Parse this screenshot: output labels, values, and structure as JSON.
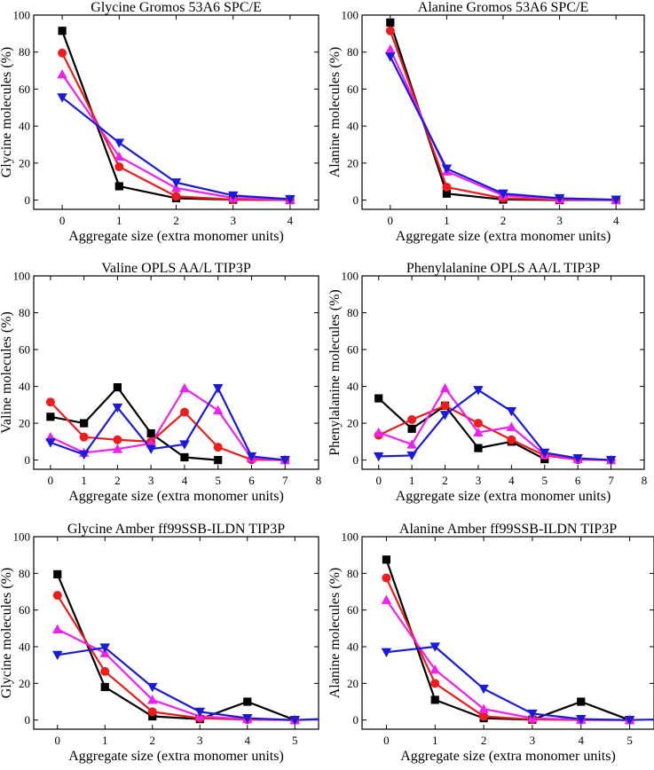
{
  "chart_data": [
    {
      "type": "line",
      "title": "Glycine Gromos 53A6 SPC/E",
      "xlabel": "Aggregate size (extra monomer units)",
      "ylabel": "Glycine molecules (%)",
      "xlim": [
        -0.5,
        4.5
      ],
      "ylim": [
        -5,
        100
      ],
      "xticks": [
        0,
        1,
        2,
        3,
        4
      ],
      "yticks": [
        0,
        20,
        40,
        60,
        80,
        100
      ],
      "series": [
        {
          "name": "black",
          "color": "#000000",
          "marker": "square",
          "x": [
            0,
            1,
            2,
            3,
            4
          ],
          "y": [
            91.5,
            7.5,
            1.0,
            0.2,
            0.0
          ]
        },
        {
          "name": "red",
          "color": "#ee1c1c",
          "marker": "circle",
          "x": [
            0,
            1,
            2,
            3,
            4
          ],
          "y": [
            79.5,
            18.0,
            2.0,
            0.3,
            0.0
          ]
        },
        {
          "name": "magenta",
          "color": "#ee22ee",
          "marker": "triangle-up",
          "x": [
            0,
            1,
            2,
            3,
            4
          ],
          "y": [
            68.0,
            23.5,
            6.5,
            1.2,
            0.2
          ]
        },
        {
          "name": "blue",
          "color": "#1a1add",
          "marker": "triangle-down",
          "x": [
            0,
            1,
            2,
            3,
            4
          ],
          "y": [
            55.5,
            31.0,
            9.5,
            2.5,
            0.5
          ]
        }
      ]
    },
    {
      "type": "line",
      "title": "Alanine Gromos 53A6 SPC/E",
      "xlabel": "Aggregate size (extra monomer units)",
      "ylabel": "Alanine molecules (%)",
      "xlim": [
        -0.5,
        4.5
      ],
      "ylim": [
        -5,
        100
      ],
      "xticks": [
        0,
        1,
        2,
        3,
        4
      ],
      "yticks": [
        0,
        20,
        40,
        60,
        80,
        100
      ],
      "series": [
        {
          "name": "black",
          "color": "#000000",
          "marker": "square",
          "x": [
            0,
            1,
            2,
            3,
            4
          ],
          "y": [
            96.0,
            3.5,
            0.3,
            0.0,
            0.0
          ]
        },
        {
          "name": "red",
          "color": "#ee1c1c",
          "marker": "circle",
          "x": [
            0,
            1,
            2,
            3,
            4
          ],
          "y": [
            91.5,
            7.0,
            1.0,
            0.2,
            0.0
          ]
        },
        {
          "name": "magenta",
          "color": "#ee22ee",
          "marker": "triangle-up",
          "x": [
            0,
            1,
            2,
            3,
            4
          ],
          "y": [
            81.5,
            15.5,
            2.5,
            0.5,
            0.0
          ]
        },
        {
          "name": "blue",
          "color": "#1a1add",
          "marker": "triangle-down",
          "x": [
            0,
            1,
            2,
            3,
            4
          ],
          "y": [
            77.5,
            17.0,
            3.5,
            1.0,
            0.2
          ]
        }
      ]
    },
    {
      "type": "line",
      "title": "Valine OPLS AA/L TIP3P",
      "xlabel": "Aggregate size (extra monomer units)",
      "ylabel": "Valine molecules (%)",
      "xlim": [
        -0.5,
        8
      ],
      "ylim": [
        -5,
        100
      ],
      "xticks": [
        0,
        1,
        2,
        3,
        4,
        5,
        6,
        7,
        8
      ],
      "yticks": [
        0,
        20,
        40,
        60,
        80,
        100
      ],
      "series": [
        {
          "name": "black",
          "color": "#000000",
          "marker": "square",
          "x": [
            0,
            1,
            2,
            3,
            4,
            5
          ],
          "y": [
            23.5,
            20.0,
            39.5,
            14.5,
            1.5,
            0.0
          ]
        },
        {
          "name": "red",
          "color": "#ee1c1c",
          "marker": "circle",
          "x": [
            0,
            1,
            2,
            3,
            4,
            5,
            6,
            7
          ],
          "y": [
            31.5,
            12.5,
            11.0,
            10.0,
            26.0,
            7.0,
            0.2,
            0.0
          ]
        },
        {
          "name": "magenta",
          "color": "#ee22ee",
          "marker": "triangle-up",
          "x": [
            0,
            1,
            2,
            3,
            4,
            5,
            6,
            7
          ],
          "y": [
            12.5,
            4.0,
            6.0,
            9.0,
            39.0,
            27.0,
            1.0,
            0.0
          ]
        },
        {
          "name": "blue",
          "color": "#1a1add",
          "marker": "triangle-down",
          "x": [
            0,
            1,
            2,
            3,
            4,
            5,
            6,
            7
          ],
          "y": [
            9.5,
            3.0,
            28.5,
            6.0,
            8.5,
            39.0,
            2.0,
            0.0
          ]
        }
      ]
    },
    {
      "type": "line",
      "title": "Phenylalanine OPLS AA/L TIP3P",
      "xlabel": "Aggregate size (extra monomer units)",
      "ylabel": "Phenylalanine molecules (%)",
      "xlim": [
        -0.5,
        8
      ],
      "ylim": [
        -5,
        100
      ],
      "xticks": [
        0,
        1,
        2,
        3,
        4,
        5,
        6,
        7,
        8
      ],
      "yticks": [
        0,
        20,
        40,
        60,
        80,
        100
      ],
      "series": [
        {
          "name": "black",
          "color": "#000000",
          "marker": "square",
          "x": [
            0,
            1,
            2,
            3,
            4,
            5
          ],
          "y": [
            33.5,
            17.0,
            29.5,
            6.5,
            10.0,
            0.5
          ]
        },
        {
          "name": "red",
          "color": "#ee1c1c",
          "marker": "circle",
          "x": [
            0,
            1,
            2,
            3,
            4,
            5,
            6,
            7
          ],
          "y": [
            13.5,
            22.0,
            29.5,
            20.0,
            11.0,
            2.5,
            0.2,
            0.0
          ]
        },
        {
          "name": "magenta",
          "color": "#ee22ee",
          "marker": "triangle-up",
          "x": [
            0,
            1,
            2,
            3,
            4,
            5,
            6,
            7
          ],
          "y": [
            15.0,
            8.5,
            39.0,
            15.0,
            18.0,
            3.0,
            0.5,
            0.0
          ]
        },
        {
          "name": "blue",
          "color": "#1a1add",
          "marker": "triangle-down",
          "x": [
            0,
            1,
            2,
            3,
            4,
            5,
            6,
            7
          ],
          "y": [
            2.0,
            2.5,
            24.5,
            38.0,
            26.5,
            4.0,
            1.0,
            0.0
          ]
        }
      ]
    },
    {
      "type": "line",
      "title": "Glycine Amber ff99SSB-ILDN TIP3P",
      "xlabel": "Aggregate size (extra monomer units)",
      "ylabel": "Glycine molecules (%)",
      "xlim": [
        -0.5,
        5.5
      ],
      "ylim": [
        -5,
        100
      ],
      "xticks": [
        0,
        1,
        2,
        3,
        4,
        5
      ],
      "yticks": [
        0,
        20,
        40,
        60,
        80,
        100
      ],
      "series": [
        {
          "name": "black",
          "color": "#000000",
          "marker": "square",
          "x": [
            0,
            1,
            2,
            3,
            4,
            5
          ],
          "y": [
            79.5,
            18.0,
            2.0,
            0.5,
            10.0,
            0.0
          ]
        },
        {
          "name": "red",
          "color": "#ee1c1c",
          "marker": "circle",
          "x": [
            0,
            1,
            2,
            3,
            4,
            5
          ],
          "y": [
            68.0,
            26.5,
            4.5,
            1.0,
            0.2,
            0.0
          ]
        },
        {
          "name": "magenta",
          "color": "#ee22ee",
          "marker": "triangle-up",
          "x": [
            0,
            1,
            2,
            3,
            4,
            5,
            5.5
          ],
          "y": [
            49.5,
            36.5,
            11.0,
            2.0,
            0.5,
            0.0,
            0.3
          ]
        },
        {
          "name": "blue",
          "color": "#1a1add",
          "marker": "triangle-down",
          "x": [
            0,
            1,
            2,
            3,
            4,
            5,
            5.5
          ],
          "y": [
            35.5,
            39.5,
            18.0,
            4.5,
            1.0,
            0.0,
            0.5
          ]
        }
      ]
    },
    {
      "type": "line",
      "title": "Alanine Amber ff99SSB-ILDN TIP3P",
      "xlabel": "Aggregate size (extra monomer units)",
      "ylabel": "Alanine molecules (%)",
      "xlim": [
        -0.5,
        5.5
      ],
      "ylim": [
        -5,
        100
      ],
      "xticks": [
        0,
        1,
        2,
        3,
        4,
        5
      ],
      "yticks": [
        0,
        20,
        40,
        60,
        80,
        100
      ],
      "series": [
        {
          "name": "black",
          "color": "#000000",
          "marker": "square",
          "x": [
            0,
            1,
            2,
            3,
            4,
            5
          ],
          "y": [
            87.5,
            11.0,
            1.0,
            0.2,
            10.0,
            0.0
          ]
        },
        {
          "name": "red",
          "color": "#ee1c1c",
          "marker": "circle",
          "x": [
            0,
            1,
            2,
            3,
            4,
            5
          ],
          "y": [
            77.5,
            20.0,
            2.0,
            0.3,
            0.0,
            0.0
          ]
        },
        {
          "name": "magenta",
          "color": "#ee22ee",
          "marker": "triangle-up",
          "x": [
            0,
            1,
            2,
            3,
            4,
            5
          ],
          "y": [
            65.5,
            27.5,
            6.0,
            1.0,
            0.2,
            0.0
          ]
        },
        {
          "name": "blue",
          "color": "#1a1add",
          "marker": "triangle-down",
          "x": [
            0,
            1,
            2,
            3,
            4,
            5,
            5.5
          ],
          "y": [
            37.0,
            40.0,
            17.0,
            3.5,
            0.5,
            0.0,
            0.3
          ]
        }
      ]
    }
  ]
}
